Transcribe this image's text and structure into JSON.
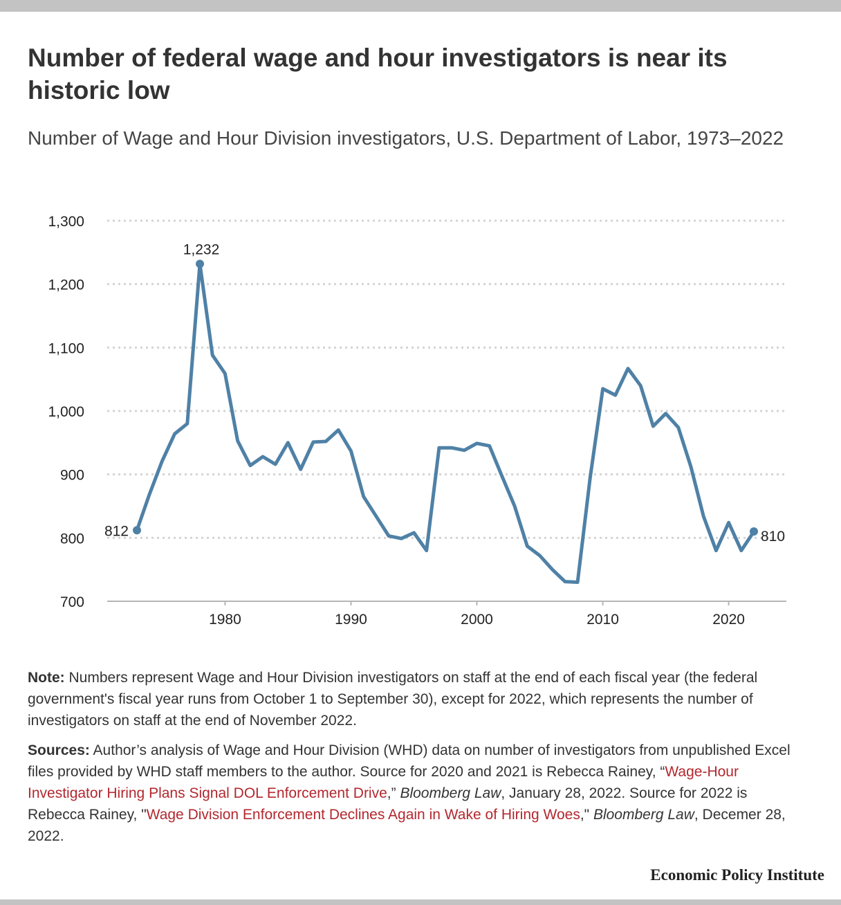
{
  "title": "Number of federal wage and hour investigators is near its historic low",
  "subtitle": "Number of Wage and Hour Division investigators, U.S. Department of Labor, 1973–2022",
  "colors": {
    "line": "#4f81a6",
    "grid": "#d4d4d4",
    "axis": "#b5b5b5",
    "link": "#b3272e",
    "frame_bar": "#c3c3c3"
  },
  "chart_data": {
    "type": "line",
    "title": "",
    "xlabel": "",
    "ylabel": "",
    "x": [
      1973,
      1974,
      1975,
      1976,
      1977,
      1978,
      1979,
      1980,
      1981,
      1982,
      1983,
      1984,
      1985,
      1986,
      1987,
      1988,
      1989,
      1990,
      1991,
      1992,
      1993,
      1994,
      1995,
      1996,
      1997,
      1998,
      1999,
      2000,
      2001,
      2002,
      2003,
      2004,
      2005,
      2006,
      2007,
      2008,
      2009,
      2010,
      2011,
      2012,
      2013,
      2014,
      2015,
      2016,
      2017,
      2018,
      2019,
      2020,
      2021,
      2022
    ],
    "series": [
      {
        "values": [
          812,
          869,
          921,
          964,
          980,
          1232,
          1088,
          1059,
          953,
          914,
          928,
          916,
          950,
          908,
          951,
          952,
          970,
          937,
          865,
          834,
          803,
          799,
          808,
          780,
          942,
          942,
          938,
          949,
          945,
          897,
          850,
          787,
          772,
          750,
          731,
          730,
          895,
          1035,
          1025,
          1067,
          1040,
          976,
          996,
          974,
          912,
          834,
          780,
          824,
          780,
          810
        ]
      }
    ],
    "xlim": [
      1971,
      2024
    ],
    "ylim": [
      700,
      1300
    ],
    "xticks": [
      1980,
      1990,
      2000,
      2010,
      2020
    ],
    "xtick_labels": [
      "1980",
      "1990",
      "2000",
      "2010",
      "2020"
    ],
    "yticks": [
      700,
      800,
      900,
      1000,
      1100,
      1200,
      1300
    ],
    "ytick_labels": [
      "700",
      "800",
      "900",
      "1,000",
      "1,100",
      "1,200",
      "1,300"
    ],
    "grid": "horizontal dotted",
    "legend": "none",
    "annotations": [
      {
        "x": 1973,
        "y": 812,
        "text": "812",
        "position": "left"
      },
      {
        "x": 1978,
        "y": 1232,
        "text": "1,232",
        "position": "top"
      },
      {
        "x": 2022,
        "y": 810,
        "text": "810",
        "position": "right"
      }
    ]
  },
  "note": {
    "label": "Note:",
    "text": " Numbers represent Wage and Hour Division investigators on staff at the end of each fiscal year (the federal government's fiscal year runs from October 1 to September 30), except for 2022, which represents the number of investigators on staff at the end of November 2022."
  },
  "sources": {
    "label": "Sources:",
    "text1": " Author’s analysis of Wage and Hour Division (WHD) data on number of investigators from unpublished Excel files provided by WHD staff members to the author. Source for 2020 and 2021 is Rebecca Rainey, “",
    "link1": "Wage-Hour Investigator Hiring Plans Signal DOL Enforcement Drive",
    "text2": ",” ",
    "pub1": "Bloomberg Law",
    "text3": ", January 28, 2022. Source for 2022 is Rebecca Rainey, \"",
    "link2": "Wage Division Enforcement Declines Again in Wake of Hiring Woes",
    "text4": ",\" ",
    "pub2": "Bloomberg Law",
    "text5": ", Decemer 28, 2022."
  },
  "brand": "Economic Policy Institute"
}
